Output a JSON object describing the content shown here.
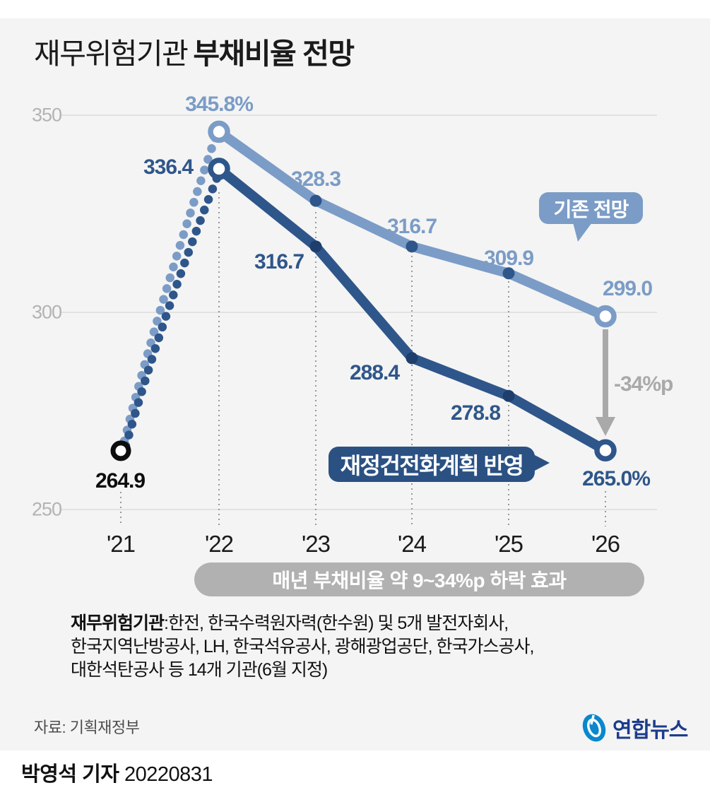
{
  "title": {
    "light": "재무위험기관",
    "bold": "부채비율 전망"
  },
  "colors": {
    "light_series": "#7b9cc6",
    "dark_series": "#2f568a",
    "light_series_dot": "#2f568a",
    "dark_series_dot": "#1e3f6d",
    "start_point": "#0d0d0d",
    "gridline": "#dcdcdc",
    "dotted_guide": "#999999",
    "arrow": "#a9a9a9",
    "banner": "#b1b1b1",
    "background": "#f4f4f4",
    "yonhap_blue": "#0a87cd",
    "yonhap_navy": "#1c3c8c"
  },
  "chart_data": {
    "type": "line",
    "title": "재무위험기관 부채비율 전망",
    "unit": "%",
    "x_labels": [
      "'21",
      "'22",
      "'23",
      "'24",
      "'25",
      "'26"
    ],
    "yticks": [
      350,
      300,
      250
    ],
    "ylim": [
      250,
      350
    ],
    "grid": "horizontal",
    "legend_position": "inline-bubbles",
    "series": [
      {
        "name": "기존 전망",
        "years": [
          "'22",
          "'23",
          "'24",
          "'25",
          "'26"
        ],
        "values": [
          345.8,
          328.3,
          316.7,
          309.9,
          299.0
        ],
        "labels": [
          "345.8%",
          "328.3",
          "316.7",
          "309.9",
          "299.0"
        ]
      },
      {
        "name": "재정건전화계획 반영",
        "years": [
          "'22",
          "'23",
          "'24",
          "'25",
          "'26"
        ],
        "values": [
          336.4,
          316.7,
          288.4,
          278.8,
          265.0
        ],
        "labels": [
          "336.4",
          "316.7",
          "288.4",
          "278.8",
          "265.0%"
        ]
      }
    ],
    "start_point": {
      "year": "'21",
      "value": 264.9,
      "label": "264.9"
    },
    "arrow_label": "-34%p"
  },
  "annotations": {
    "existing_bubble": "기존 전망",
    "plan_bubble": "재정건전화계획 반영",
    "banner": "매년 부채비율 약 9~34%p 하락 효과"
  },
  "footnote": {
    "bold": "재무위험기관",
    "line1_rest": ":한전, 한국수력원자력(한수원) 및 5개 발전자회사,",
    "line2": "한국지역난방공사, LH, 한국석유공사, 광해광업공단, 한국가스공사,",
    "line3": "대한석탄공사 등 14개 기관(6월 지정)"
  },
  "source": "자료: 기획재정부",
  "logo": {
    "text": "연합뉴스"
  },
  "byline": {
    "name": "박영석 기자",
    "date": "20220831"
  }
}
